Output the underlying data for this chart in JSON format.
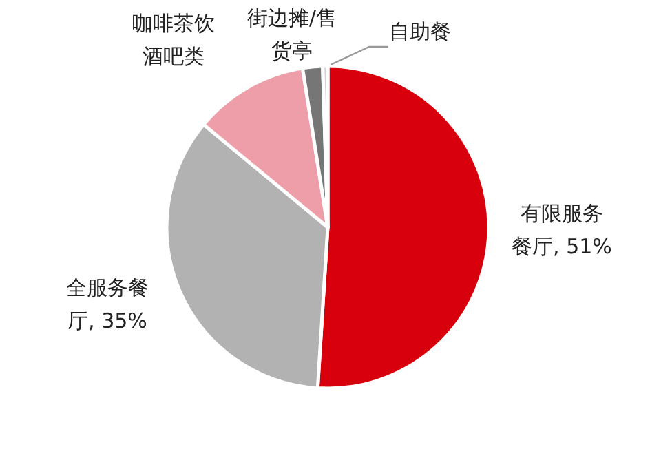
{
  "chart_data": {
    "type": "pie",
    "categories": [
      "有限服务餐厅",
      "全服务餐厅",
      "咖啡茶饮酒吧类",
      "街边摊/售货亭",
      "自助餐"
    ],
    "values": [
      51,
      35,
      11.5,
      2,
      0.5
    ],
    "value_labels": [
      "51%",
      "35%",
      null,
      null,
      null
    ],
    "colors": [
      "#d9000d",
      "#b2b2b2",
      "#ee9ea8",
      "#767676",
      "#d4d4d4"
    ]
  }
}
